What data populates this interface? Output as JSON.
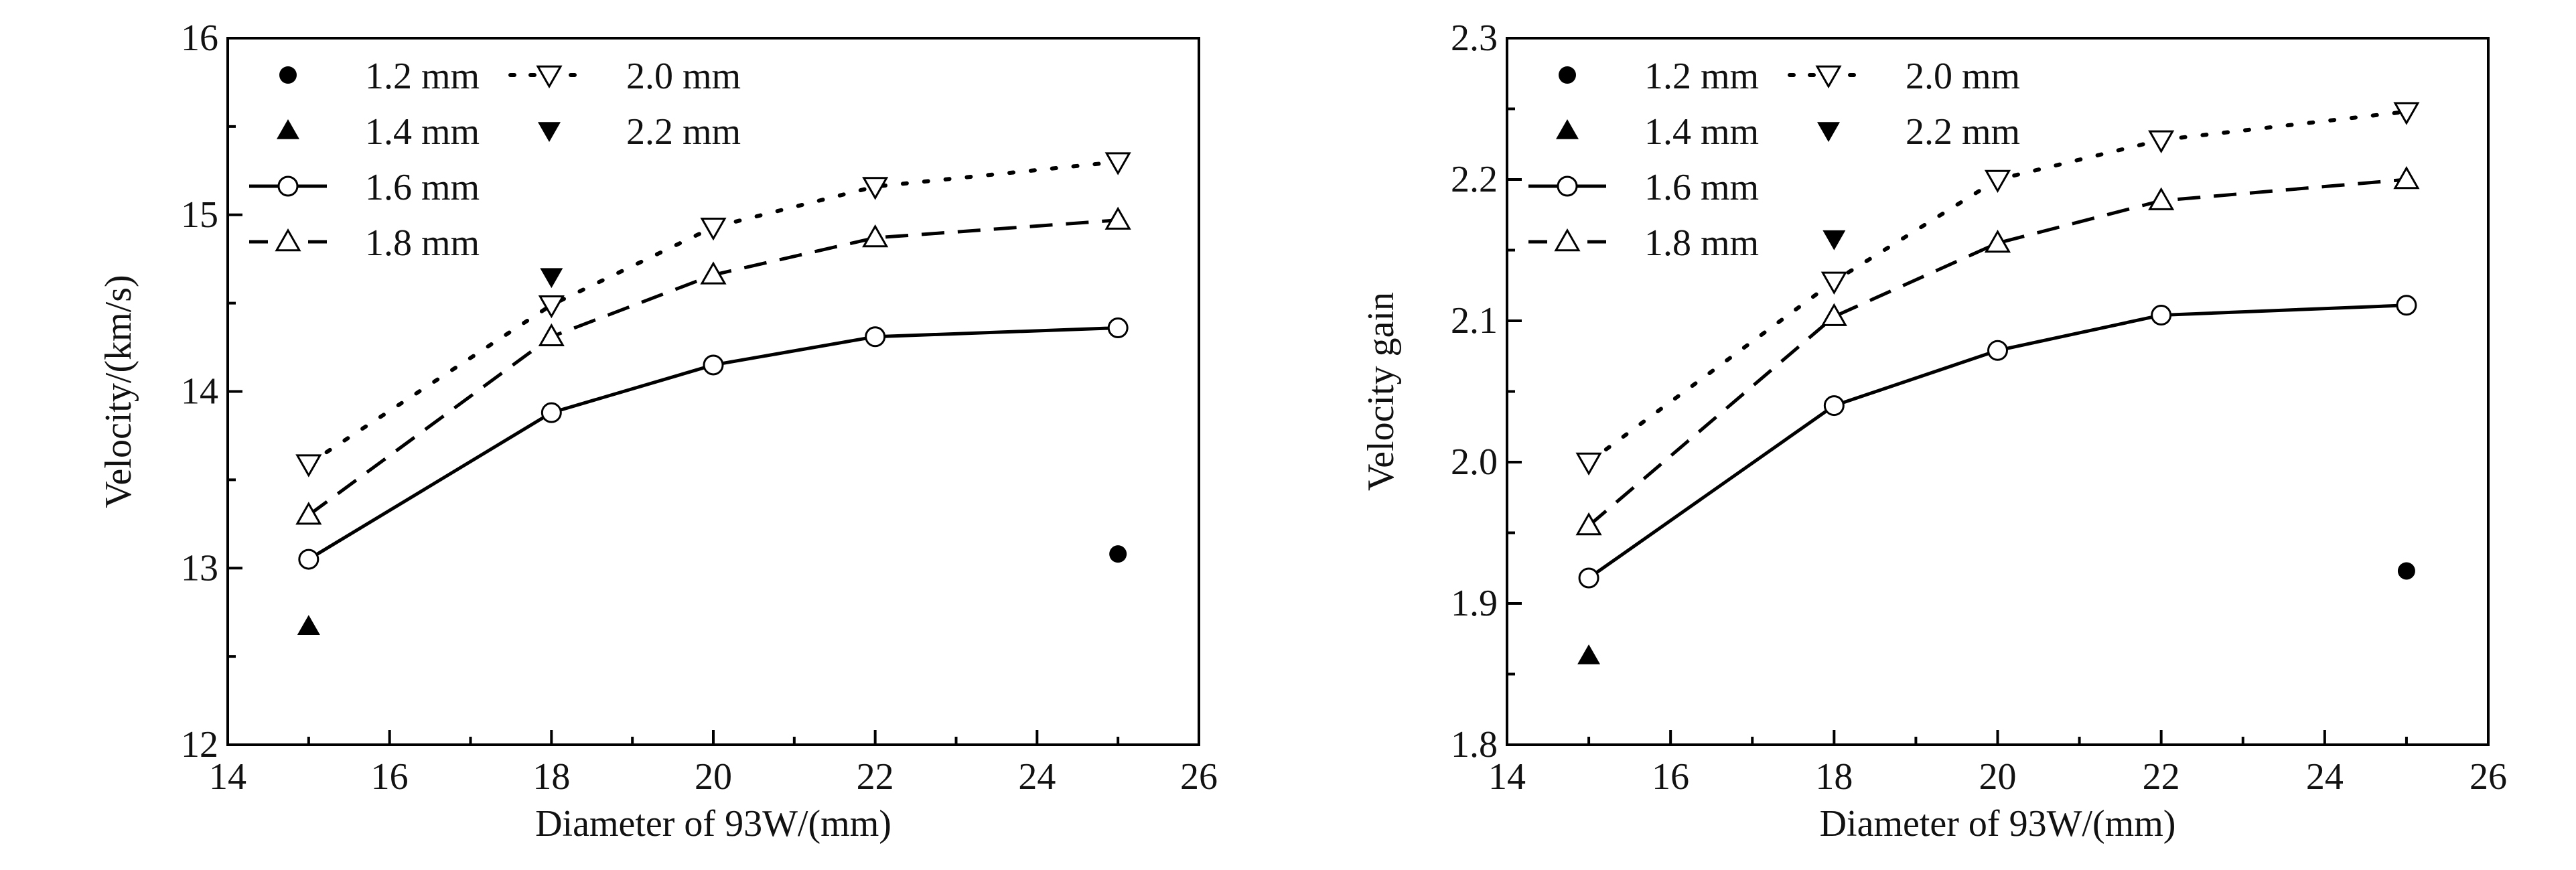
{
  "chart_data": [
    {
      "type": "line",
      "xlabel": "Diameter of 93W/(mm)",
      "ylabel": "Velocity/(km/s)",
      "xlim": [
        14,
        26
      ],
      "ylim": [
        12,
        16
      ],
      "xticks": [
        14,
        16,
        18,
        20,
        22,
        24,
        26
      ],
      "yticks": [
        12,
        13,
        14,
        15,
        16
      ],
      "xtick_labels": [
        "14",
        "16",
        "18",
        "20",
        "22",
        "24",
        "26"
      ],
      "ytick_labels": [
        "12",
        "13",
        "14",
        "15",
        "16"
      ],
      "legend_placement": "top-left",
      "series": [
        {
          "name": "1.2 mm",
          "marker": "filled-circle",
          "line": "none",
          "x": [
            25
          ],
          "y": [
            13.08
          ]
        },
        {
          "name": "1.4 mm",
          "marker": "filled-triangle-up",
          "line": "none",
          "x": [
            15
          ],
          "y": [
            12.67
          ]
        },
        {
          "name": "1.6 mm",
          "marker": "open-circle",
          "line": "solid",
          "x": [
            15,
            18,
            20,
            22,
            25
          ],
          "y": [
            13.05,
            13.88,
            14.15,
            14.31,
            14.36
          ]
        },
        {
          "name": "1.8 mm",
          "marker": "open-triangle-up",
          "line": "dashed",
          "x": [
            15,
            18,
            20,
            22,
            25
          ],
          "y": [
            13.3,
            14.31,
            14.66,
            14.87,
            14.97
          ]
        },
        {
          "name": "2.0 mm",
          "marker": "open-triangle-down",
          "line": "dotted",
          "x": [
            15,
            18,
            20,
            22,
            25
          ],
          "y": [
            13.59,
            14.49,
            14.93,
            15.16,
            15.3
          ]
        },
        {
          "name": "2.2 mm",
          "marker": "filled-triangle-down",
          "line": "none",
          "x": [
            18
          ],
          "y": [
            14.65
          ]
        }
      ]
    },
    {
      "type": "line",
      "xlabel": "Diameter of 93W/(mm)",
      "ylabel": "Velocity gain",
      "xlim": [
        14,
        26
      ],
      "ylim": [
        1.8,
        2.3
      ],
      "xticks": [
        14,
        16,
        18,
        20,
        22,
        24,
        26
      ],
      "yticks": [
        1.8,
        1.9,
        2.0,
        2.1,
        2.2,
        2.3
      ],
      "xtick_labels": [
        "14",
        "16",
        "18",
        "20",
        "22",
        "24",
        "26"
      ],
      "ytick_labels": [
        "1.8",
        "1.9",
        "2.0",
        "2.1",
        "2.2",
        "2.3"
      ],
      "legend_placement": "top-left",
      "series": [
        {
          "name": "1.2 mm",
          "marker": "filled-circle",
          "line": "none",
          "x": [
            25
          ],
          "y": [
            1.923
          ]
        },
        {
          "name": "1.4 mm",
          "marker": "filled-triangle-up",
          "line": "none",
          "x": [
            15
          ],
          "y": [
            1.863
          ]
        },
        {
          "name": "1.6 mm",
          "marker": "open-circle",
          "line": "solid",
          "x": [
            15,
            18,
            20,
            22,
            25
          ],
          "y": [
            1.918,
            2.04,
            2.079,
            2.104,
            2.111
          ]
        },
        {
          "name": "1.8 mm",
          "marker": "open-triangle-up",
          "line": "dashed",
          "x": [
            15,
            18,
            20,
            22,
            25
          ],
          "y": [
            1.955,
            2.103,
            2.155,
            2.185,
            2.2
          ]
        },
        {
          "name": "2.0 mm",
          "marker": "open-triangle-down",
          "line": "dotted",
          "x": [
            15,
            18,
            20,
            22,
            25
          ],
          "y": [
            2.0,
            2.128,
            2.2,
            2.228,
            2.248
          ]
        },
        {
          "name": "2.2 mm",
          "marker": "filled-triangle-down",
          "line": "none",
          "x": [
            18
          ],
          "y": [
            2.158
          ]
        }
      ]
    }
  ]
}
